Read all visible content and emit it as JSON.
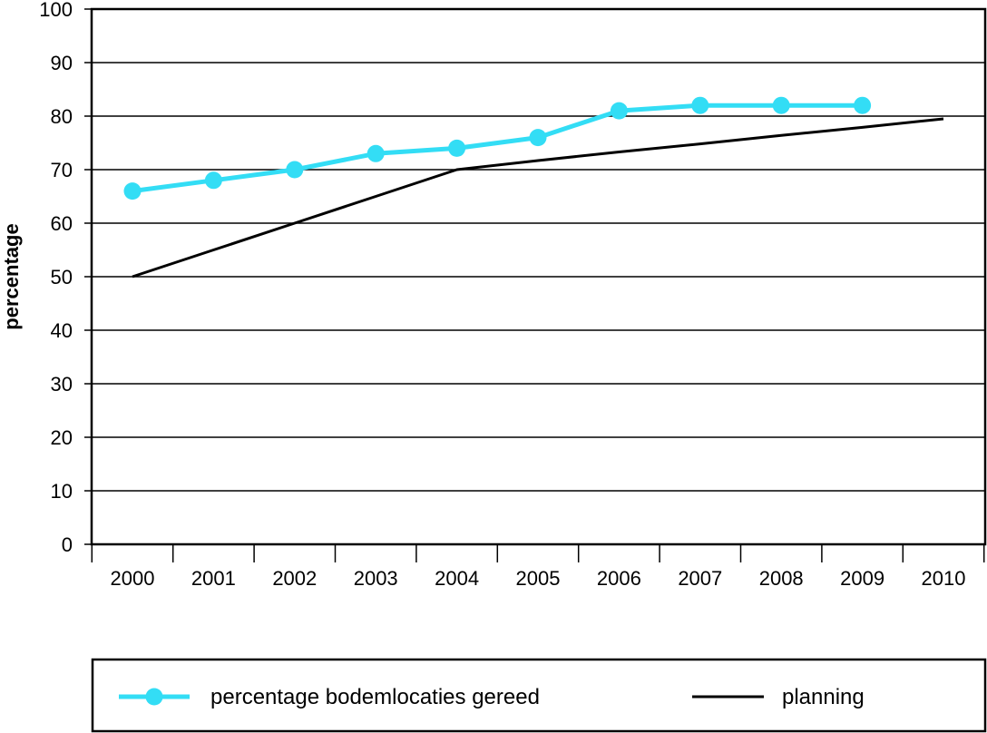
{
  "chart_data": {
    "type": "line",
    "title": "",
    "xlabel": "",
    "ylabel": "percentage",
    "categories": [
      "2000",
      "2001",
      "2002",
      "2003",
      "2004",
      "2005",
      "2006",
      "2007",
      "2008",
      "2009",
      "2010"
    ],
    "ylim": [
      0,
      100
    ],
    "yticks": [
      0,
      10,
      20,
      30,
      40,
      50,
      60,
      70,
      80,
      90,
      100
    ],
    "grid": true,
    "legend_position": "bottom",
    "series": [
      {
        "name": "percentage bodemlocaties gereed",
        "color": "#33ddf5",
        "marker": "circle",
        "values": [
          66,
          68,
          70,
          73,
          74,
          76,
          81,
          82,
          82,
          82,
          null
        ]
      },
      {
        "name": "planning",
        "color": "#000000",
        "marker": "none",
        "values": [
          50,
          55,
          60,
          65,
          70,
          71.7,
          73.3,
          74.8,
          76.4,
          77.9,
          79.5
        ]
      }
    ]
  }
}
